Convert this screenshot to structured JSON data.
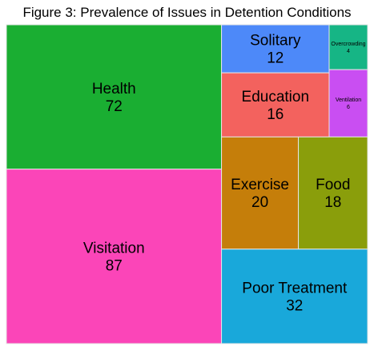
{
  "chart_data": {
    "type": "treemap",
    "title": "Figure 3: Prevalence of Issues in Detention Conditions",
    "items": [
      {
        "label": "Health",
        "value": 72,
        "color": "#1aae32"
      },
      {
        "label": "Visitation",
        "value": 87,
        "color": "#fb45b8"
      },
      {
        "label": "Solitary",
        "value": 12,
        "color": "#4d89f9"
      },
      {
        "label": "Overcrowding",
        "value": 4,
        "color": "#16b585"
      },
      {
        "label": "Education",
        "value": 16,
        "color": "#f3625e"
      },
      {
        "label": "Ventilation",
        "value": 6,
        "color": "#c94ef2"
      },
      {
        "label": "Exercise",
        "value": 20,
        "color": "#c57e0a"
      },
      {
        "label": "Food",
        "value": 18,
        "color": "#8a9e0b"
      },
      {
        "label": "Poor Treatment",
        "value": 32,
        "color": "#19a8da"
      }
    ]
  }
}
